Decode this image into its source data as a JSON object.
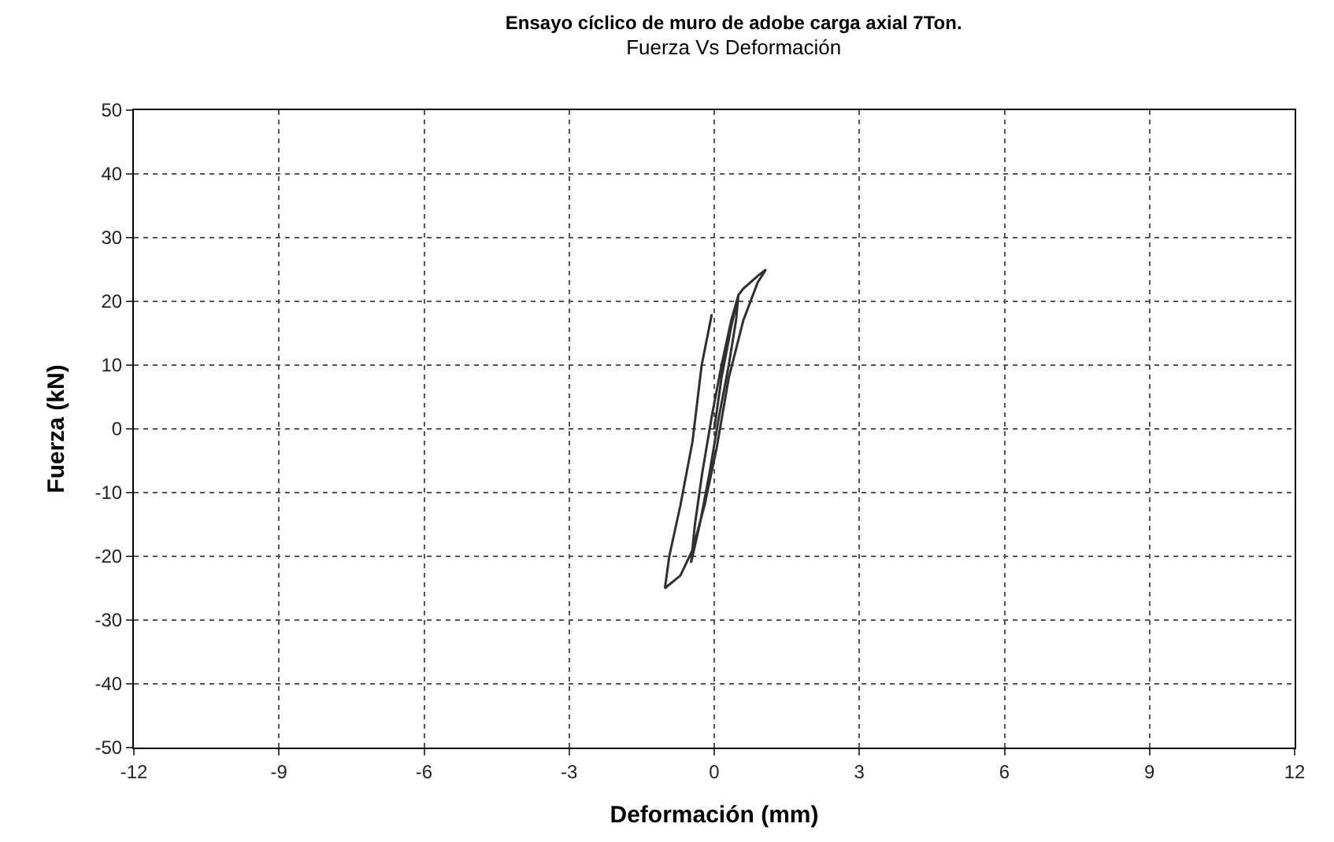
{
  "chart_data": {
    "type": "line",
    "title": "Ensayo cíclico de muro de adobe carga axial 7Ton.",
    "subtitle": "Fuerza Vs Deformación",
    "xlabel": "Deformación (mm)",
    "ylabel": "Fuerza (kN)",
    "series": [
      {
        "color": "#303030",
        "x": [
          0,
          0.15,
          0.35,
          0.5,
          0.45,
          0.3,
          0.1,
          -0.1,
          -0.3,
          -0.48,
          -0.4,
          -0.25,
          -0.05,
          0.15,
          0.35,
          0.5,
          0.6,
          0.9,
          1.07,
          0.9,
          0.6,
          0.3,
          0.05,
          -0.2,
          -0.45,
          -0.7,
          -1.02,
          -0.93,
          -0.7,
          -0.45,
          -0.26,
          -0.05
        ],
        "values": [
          0,
          8,
          16,
          21,
          17,
          10,
          2,
          -7,
          -15,
          -21,
          -15,
          -7,
          2,
          10,
          17,
          21,
          22,
          24,
          25,
          23,
          17,
          8,
          -3,
          -12,
          -19,
          -23,
          -25,
          -20,
          -12,
          -2,
          10,
          18
        ]
      }
    ],
    "xlim": [
      -12,
      12
    ],
    "xticks": [
      -12,
      -9,
      -6,
      -3,
      0,
      3,
      6,
      9,
      12
    ],
    "ylim": [
      -50,
      50
    ],
    "yticks": [
      -50,
      -40,
      -30,
      -20,
      -10,
      0,
      10,
      20,
      30,
      40,
      50
    ],
    "grid": true,
    "marker": "none",
    "line_style": "solid"
  }
}
